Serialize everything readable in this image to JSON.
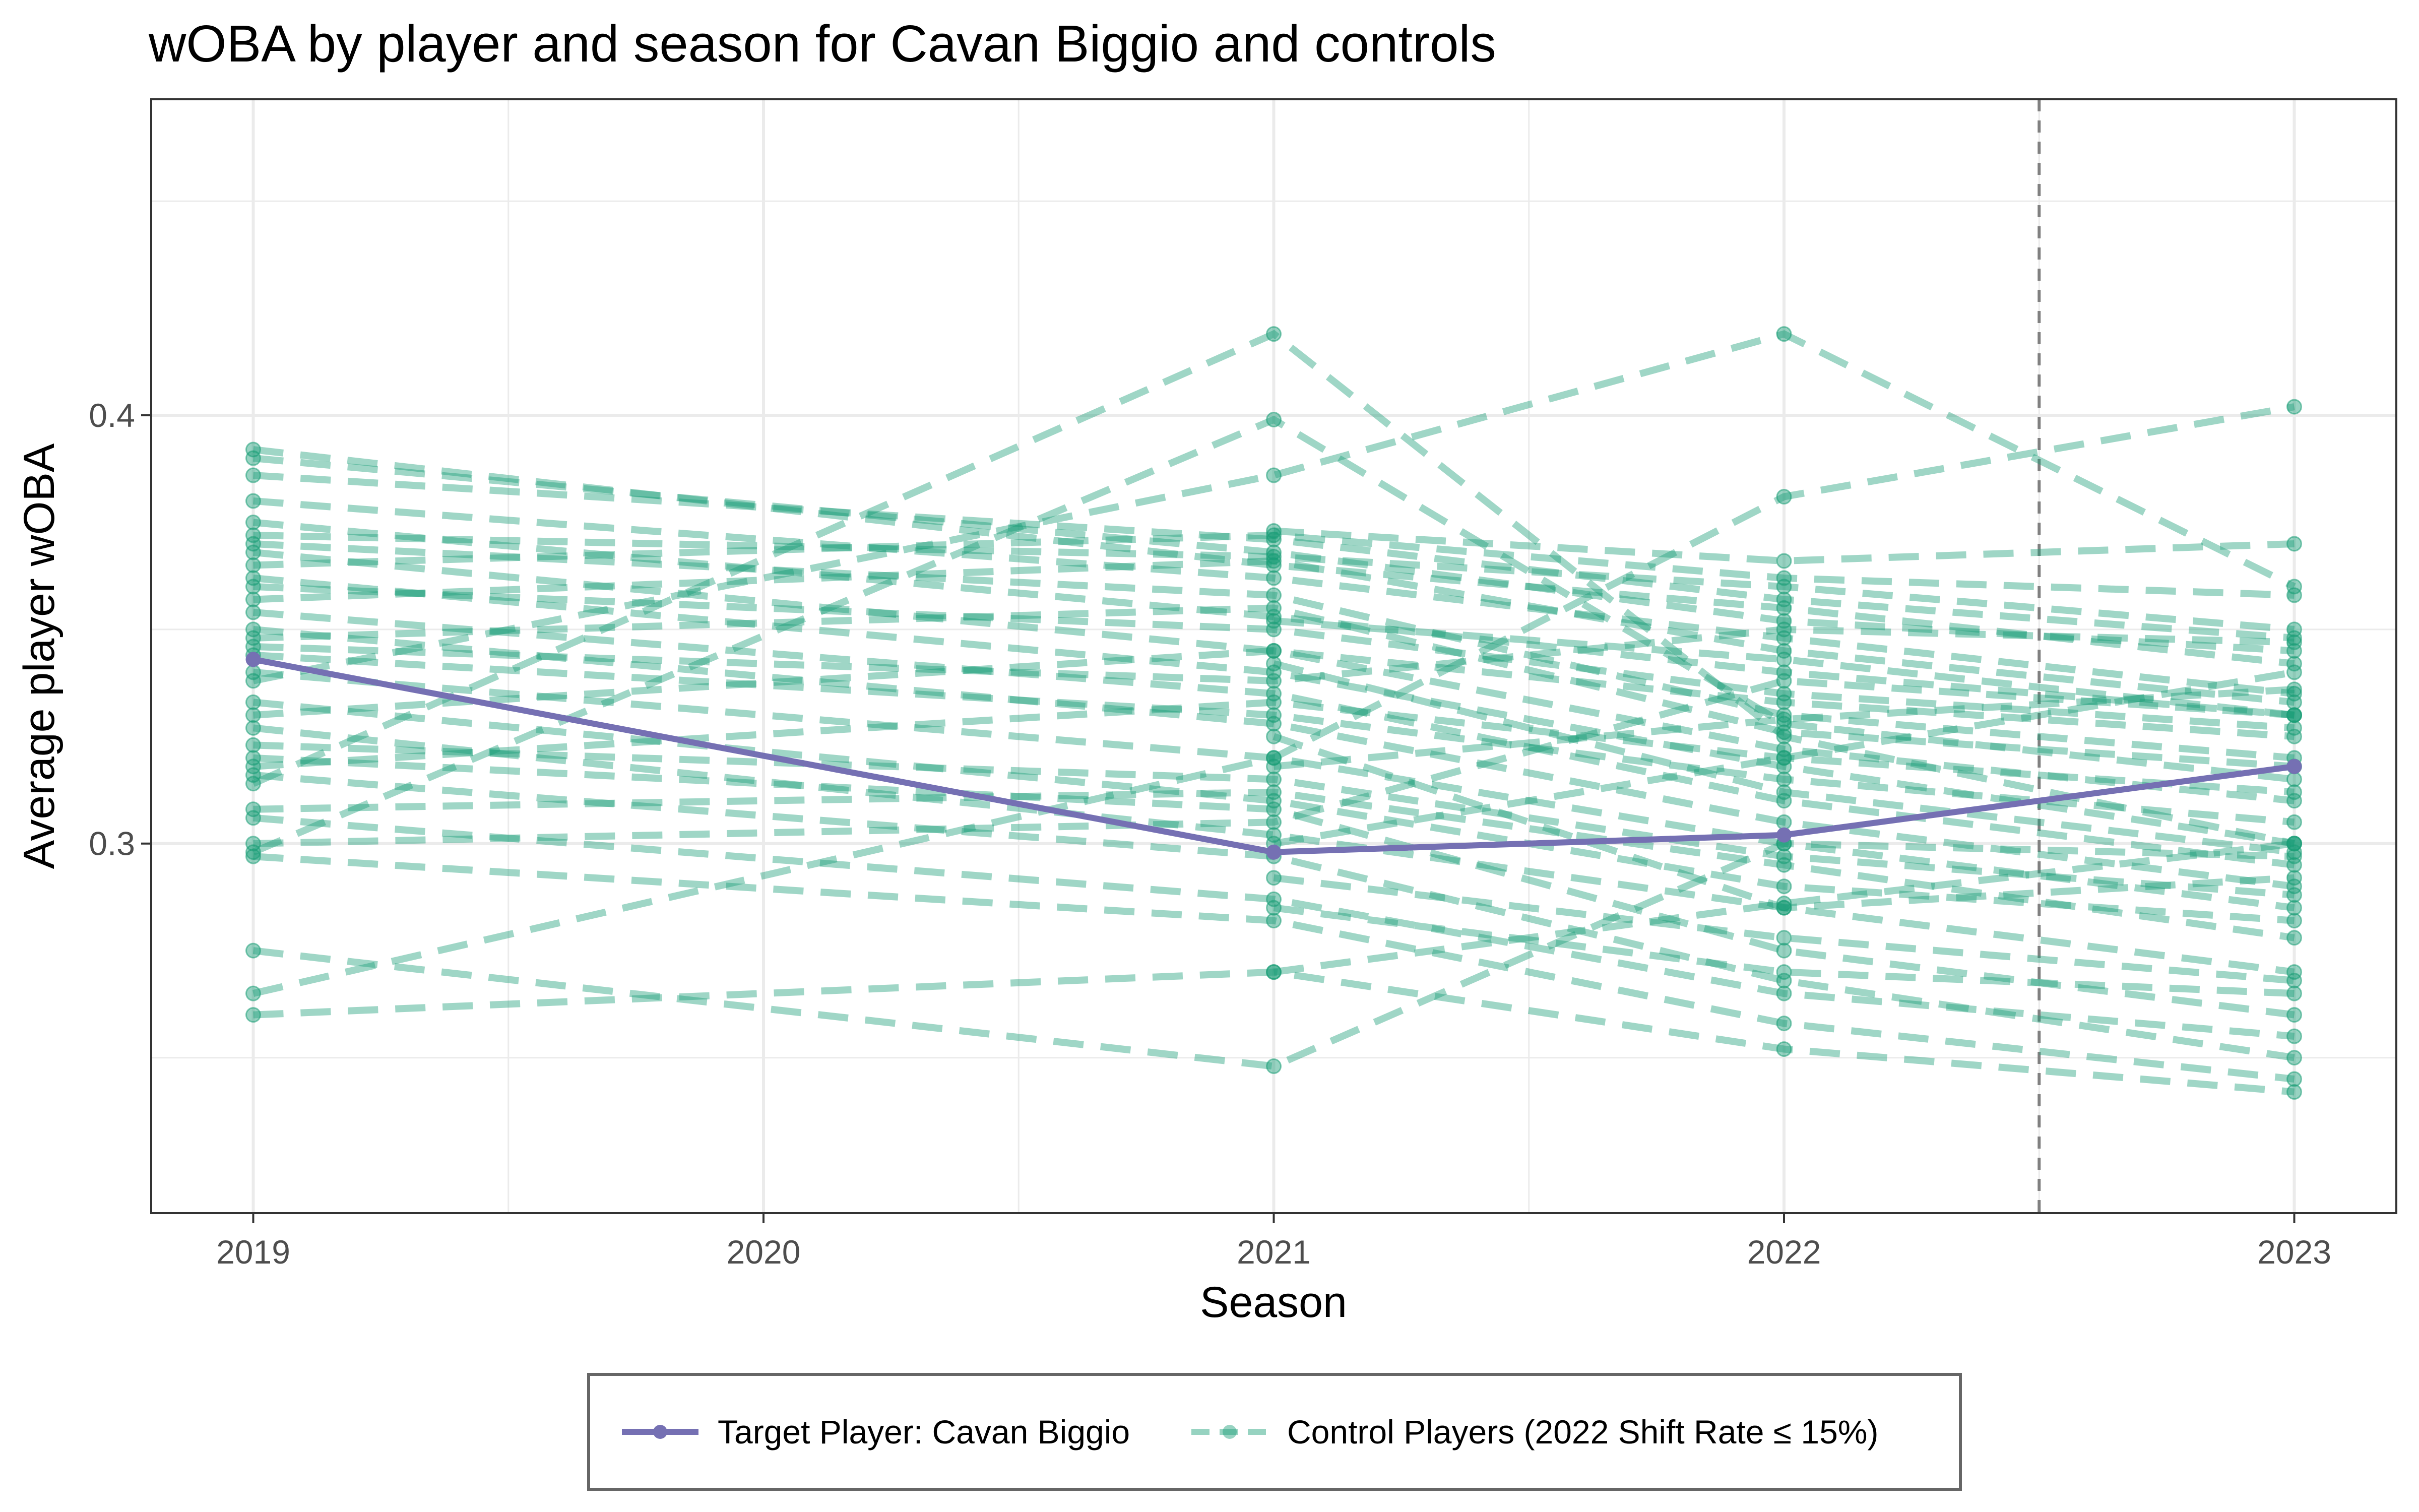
{
  "chart_data": {
    "type": "line",
    "title": "wOBA by player and season for Cavan Biggio and controls",
    "xlabel": "Season",
    "ylabel": "Average player wOBA",
    "x_ticks": [
      "2019",
      "2020",
      "2021",
      "2022",
      "2023"
    ],
    "y_ticks": [
      "0.3",
      "0.4"
    ],
    "xlim": [
      2018.8,
      2023.2
    ],
    "ylim": [
      0.2137,
      0.4738
    ],
    "grid": true,
    "legend_position": "bottom",
    "reference_line": {
      "x": 2022.5,
      "style": "dashed"
    },
    "colors": {
      "target": "#7570b3",
      "control": "#1b9e77",
      "reference": "#808080"
    },
    "target_series": {
      "name": "Target Player: Cavan Biggio",
      "x": [
        2019,
        2021,
        2022,
        2023
      ],
      "y": [
        0.343,
        0.298,
        0.302,
        0.318
      ]
    },
    "control_series_label": "Control Players (2022 Shift Rate ≤ 15%)",
    "control_series": [
      {
        "x": [
          2019,
          2021,
          2022,
          2023
        ],
        "y": [
          0.392,
          0.365,
          0.355,
          0.342
        ]
      },
      {
        "x": [
          2019,
          2021,
          2022,
          2023
        ],
        "y": [
          0.39,
          0.368,
          0.352,
          0.345
        ]
      },
      {
        "x": [
          2019,
          2021,
          2022,
          2023
        ],
        "y": [
          0.386,
          0.371,
          0.357,
          0.348
        ]
      },
      {
        "x": [
          2019,
          2021,
          2022,
          2023
        ],
        "y": [
          0.38,
          0.362,
          0.348,
          0.335
        ]
      },
      {
        "x": [
          2019,
          2021,
          2022,
          2023
        ],
        "y": [
          0.375,
          0.353,
          0.34,
          0.33
        ]
      },
      {
        "x": [
          2019,
          2021,
          2022,
          2023
        ],
        "y": [
          0.372,
          0.367,
          0.36,
          0.35
        ]
      },
      {
        "x": [
          2019,
          2021,
          2022,
          2023
        ],
        "y": [
          0.37,
          0.358,
          0.33,
          0.32
        ]
      },
      {
        "x": [
          2019,
          2021,
          2022,
          2023
        ],
        "y": [
          0.368,
          0.345,
          0.322,
          0.31
        ]
      },
      {
        "x": [
          2019,
          2021,
          2022,
          2023
        ],
        "y": [
          0.365,
          0.372,
          0.362,
          0.358
        ]
      },
      {
        "x": [
          2019,
          2021,
          2022,
          2023
        ],
        "y": [
          0.362,
          0.34,
          0.318,
          0.3
        ]
      },
      {
        "x": [
          2019,
          2021,
          2022,
          2023
        ],
        "y": [
          0.36,
          0.35,
          0.335,
          0.327
        ]
      },
      {
        "x": [
          2019,
          2021,
          2022,
          2023
        ],
        "y": [
          0.357,
          0.366,
          0.345,
          0.333
        ]
      },
      {
        "x": [
          2019,
          2021,
          2022,
          2023
        ],
        "y": [
          0.354,
          0.335,
          0.31,
          0.295
        ]
      },
      {
        "x": [
          2019,
          2021,
          2022,
          2023
        ],
        "y": [
          0.35,
          0.328,
          0.305,
          0.29
        ]
      },
      {
        "x": [
          2019,
          2021,
          2022,
          2023
        ],
        "y": [
          0.348,
          0.355,
          0.326,
          0.318
        ]
      },
      {
        "x": [
          2019,
          2021,
          2022,
          2023
        ],
        "y": [
          0.346,
          0.338,
          0.35,
          0.347
        ]
      },
      {
        "x": [
          2019,
          2021,
          2022,
          2023
        ],
        "y": [
          0.344,
          0.33,
          0.315,
          0.305
        ]
      },
      {
        "x": [
          2019,
          2021,
          2022,
          2023
        ],
        "y": [
          0.34,
          0.32,
          0.3,
          0.285
        ]
      },
      {
        "x": [
          2019,
          2021,
          2022,
          2023
        ],
        "y": [
          0.338,
          0.386,
          0.419,
          0.36
        ]
      },
      {
        "x": [
          2019,
          2021,
          2022,
          2023
        ],
        "y": [
          0.333,
          0.31,
          0.29,
          0.282
        ]
      },
      {
        "x": [
          2019,
          2021,
          2022,
          2023
        ],
        "y": [
          0.33,
          0.345,
          0.333,
          0.325
        ]
      },
      {
        "x": [
          2019,
          2021,
          2022,
          2023
        ],
        "y": [
          0.327,
          0.302,
          0.285,
          0.27
        ]
      },
      {
        "x": [
          2019,
          2021,
          2022,
          2023
        ],
        "y": [
          0.323,
          0.315,
          0.297,
          0.288
        ]
      },
      {
        "x": [
          2019,
          2021,
          2022,
          2023
        ],
        "y": [
          0.32,
          0.308,
          0.275,
          0.26
        ]
      },
      {
        "x": [
          2019,
          2021,
          2022,
          2023
        ],
        "y": [
          0.318,
          0.333,
          0.32,
          0.312
        ]
      },
      {
        "x": [
          2019,
          2021,
          2022,
          2023
        ],
        "y": [
          0.316,
          0.297,
          0.268,
          0.25
        ]
      },
      {
        "x": [
          2019,
          2021,
          2022,
          2023
        ],
        "y": [
          0.314,
          0.419,
          0.325,
          0.3
        ]
      },
      {
        "x": [
          2019,
          2021,
          2022,
          2023
        ],
        "y": [
          0.308,
          0.312,
          0.295,
          0.278
        ]
      },
      {
        "x": [
          2019,
          2021,
          2022,
          2023
        ],
        "y": [
          0.306,
          0.287,
          0.265,
          0.255
        ]
      },
      {
        "x": [
          2019,
          2021,
          2022,
          2023
        ],
        "y": [
          0.3,
          0.305,
          0.338,
          0.33
        ]
      },
      {
        "x": [
          2019,
          2021,
          2022,
          2023
        ],
        "y": [
          0.298,
          0.399,
          0.328,
          0.315
        ]
      },
      {
        "x": [
          2019,
          2021,
          2022,
          2023
        ],
        "y": [
          0.297,
          0.282,
          0.258,
          0.245
        ]
      },
      {
        "x": [
          2019,
          2021,
          2022,
          2023
        ],
        "y": [
          0.275,
          0.248,
          0.3,
          0.297
        ]
      },
      {
        "x": [
          2019,
          2021,
          2022,
          2023
        ],
        "y": [
          0.265,
          0.32,
          0.381,
          0.402
        ]
      },
      {
        "x": [
          2019,
          2021,
          2022,
          2023
        ],
        "y": [
          0.26,
          0.27,
          0.252,
          0.242
        ]
      },
      {
        "x": [
          2021,
          2022,
          2023
        ],
        "y": [
          0.373,
          0.366,
          0.37
        ]
      },
      {
        "x": [
          2021,
          2022,
          2023
        ],
        "y": [
          0.325,
          0.285,
          0.292
        ]
      },
      {
        "x": [
          2021,
          2022,
          2023
        ],
        "y": [
          0.342,
          0.312,
          0.298
        ]
      },
      {
        "x": [
          2021,
          2022,
          2023
        ],
        "y": [
          0.3,
          0.32,
          0.34
        ]
      },
      {
        "x": [
          2021,
          2022,
          2023
        ],
        "y": [
          0.292,
          0.278,
          0.268
        ]
      },
      {
        "x": [
          2021,
          2022,
          2023
        ],
        "y": [
          0.27,
          0.286,
          0.3
        ]
      },
      {
        "x": [
          2021,
          2022,
          2023
        ],
        "y": [
          0.318,
          0.329,
          0.336
        ]
      },
      {
        "x": [
          2021,
          2022,
          2023
        ],
        "y": [
          0.352,
          0.343,
          0.33
        ]
      },
      {
        "x": [
          2021,
          2022,
          2023
        ],
        "y": [
          0.285,
          0.27,
          0.265
        ]
      }
    ]
  }
}
